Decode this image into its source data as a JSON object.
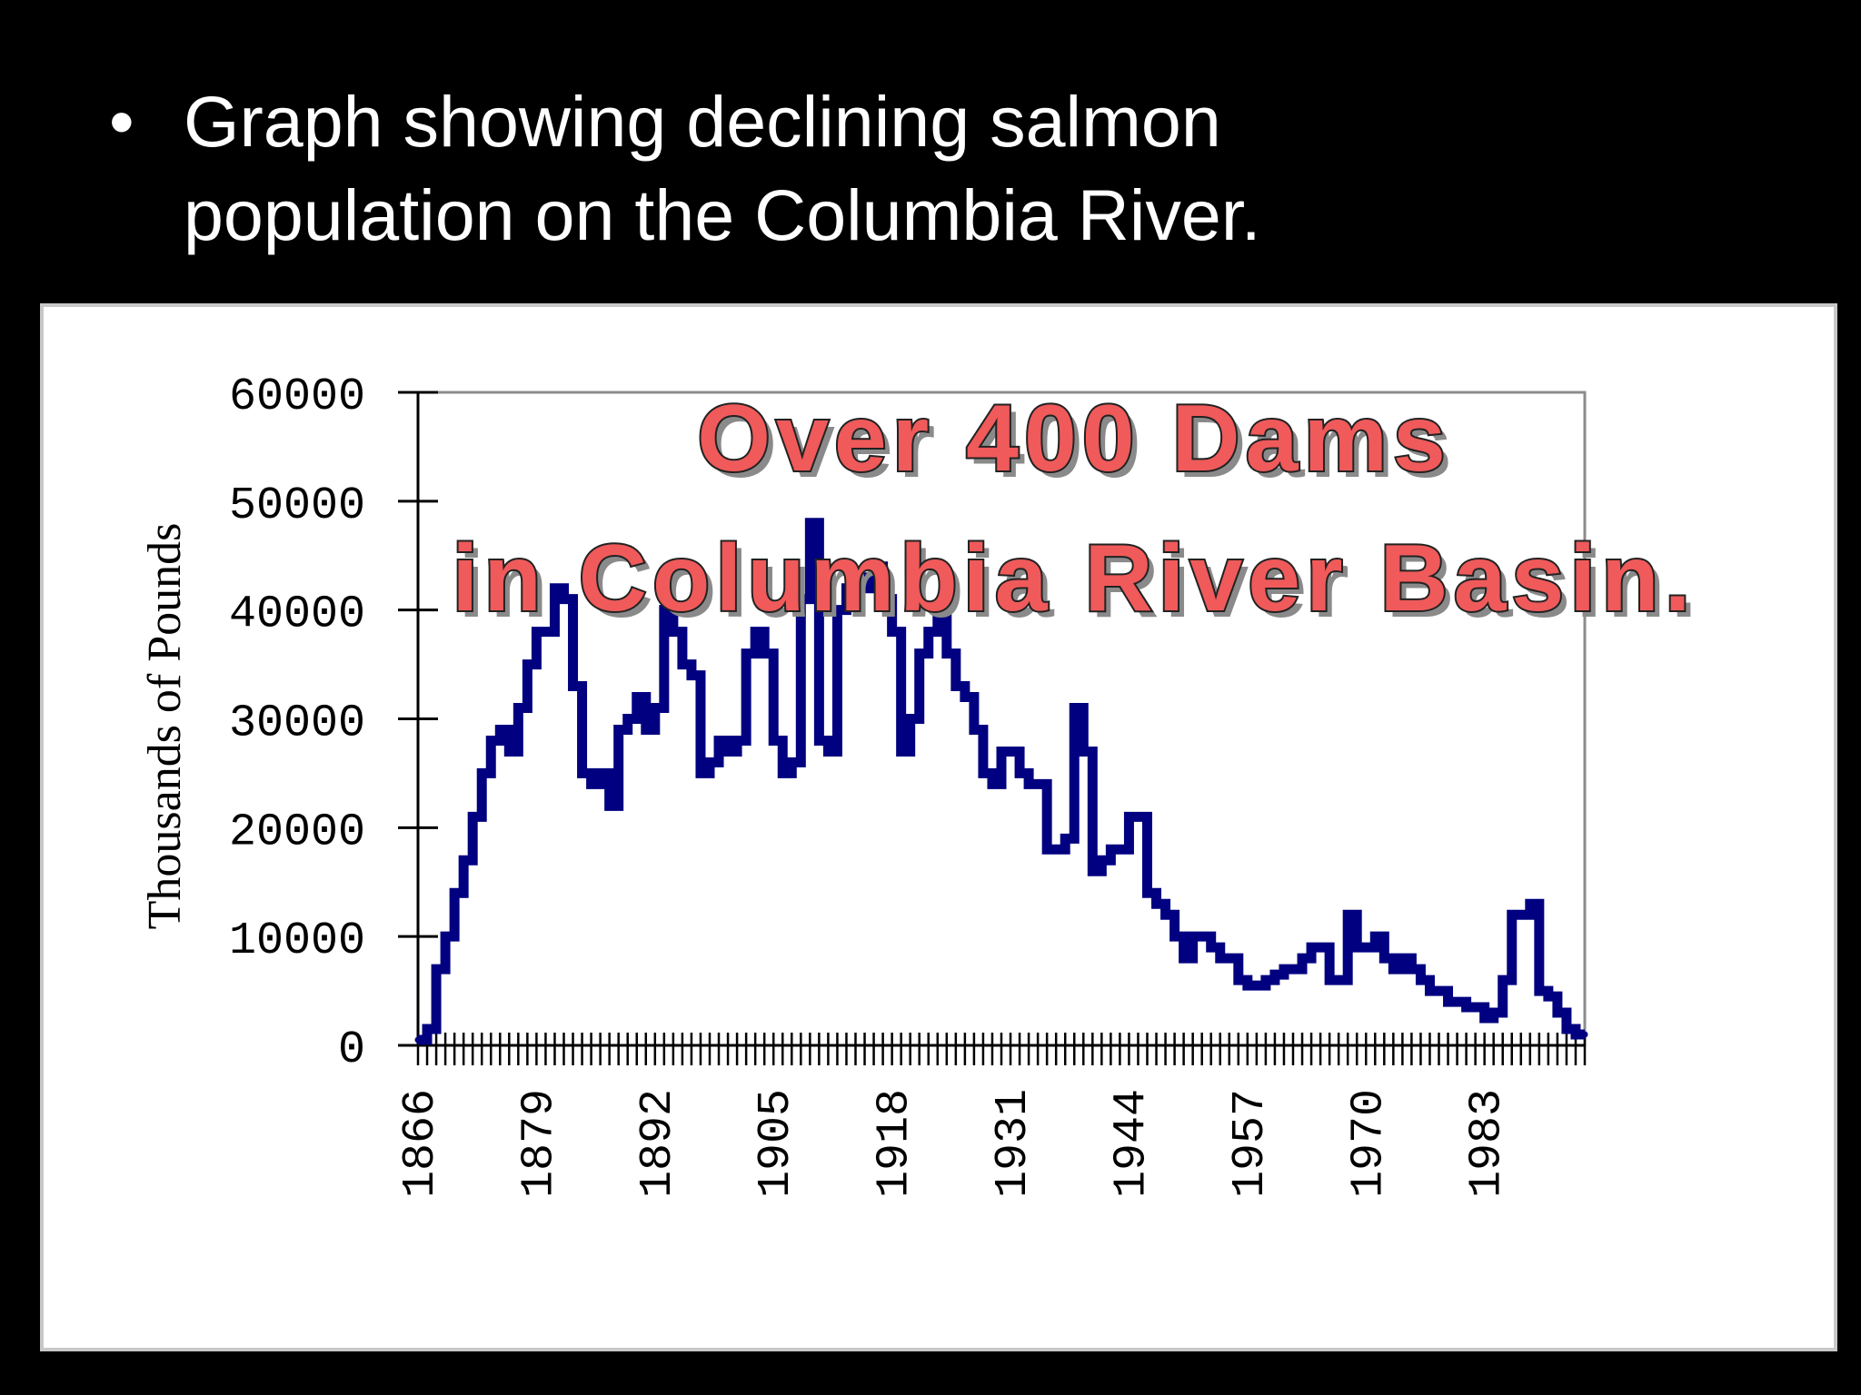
{
  "slide": {
    "bullet": "•",
    "text_line1": "Graph showing declining salmon",
    "text_line2": "population on the Columbia River."
  },
  "colors": {
    "background": "#000000",
    "text": "#ffffff",
    "series": "#000080",
    "annotation_fill": "#f05a5a",
    "annotation_stroke": "#222222",
    "annotation_shadow": "#8a8a8a"
  },
  "chart_data": {
    "type": "line",
    "title": "",
    "xlabel": "",
    "ylabel": "Thousands of Pounds",
    "ylim": [
      0,
      60000
    ],
    "xlim": [
      1866,
      1994
    ],
    "yticks": [
      "0",
      "10000",
      "20000",
      "30000",
      "40000",
      "50000",
      "60000"
    ],
    "xticks": [
      "1866",
      "1879",
      "1892",
      "1905",
      "1918",
      "1931",
      "1944",
      "1957",
      "1970",
      "1983"
    ],
    "grid": false,
    "legend": "none",
    "annotation": {
      "line1": "Over 400 Dams",
      "line2": "in Columbia River Basin."
    },
    "series": [
      {
        "name": "",
        "x": [
          1866,
          1867,
          1868,
          1869,
          1870,
          1871,
          1872,
          1873,
          1874,
          1875,
          1876,
          1877,
          1878,
          1879,
          1880,
          1881,
          1882,
          1883,
          1884,
          1885,
          1886,
          1887,
          1888,
          1889,
          1890,
          1891,
          1892,
          1893,
          1894,
          1895,
          1896,
          1897,
          1898,
          1899,
          1900,
          1901,
          1902,
          1903,
          1904,
          1905,
          1906,
          1907,
          1908,
          1909,
          1910,
          1911,
          1912,
          1913,
          1914,
          1915,
          1916,
          1917,
          1918,
          1919,
          1920,
          1921,
          1922,
          1923,
          1924,
          1925,
          1926,
          1927,
          1928,
          1929,
          1930,
          1931,
          1932,
          1933,
          1934,
          1935,
          1936,
          1937,
          1938,
          1939,
          1940,
          1941,
          1942,
          1943,
          1944,
          1945,
          1946,
          1947,
          1948,
          1949,
          1950,
          1951,
          1952,
          1953,
          1954,
          1955,
          1956,
          1957,
          1958,
          1959,
          1960,
          1961,
          1962,
          1963,
          1964,
          1965,
          1966,
          1967,
          1968,
          1969,
          1970,
          1971,
          1972,
          1973,
          1974,
          1975,
          1976,
          1977,
          1978,
          1979,
          1980,
          1981,
          1982,
          1983,
          1984,
          1985,
          1986,
          1987,
          1988,
          1989,
          1990,
          1991,
          1992,
          1993,
          1994
        ],
        "y": [
          500,
          1500,
          7000,
          10000,
          14000,
          17000,
          21000,
          25000,
          28000,
          29000,
          27000,
          31000,
          35000,
          38000,
          38000,
          42000,
          41000,
          33000,
          25000,
          24000,
          25000,
          22000,
          29000,
          30000,
          32000,
          29000,
          31000,
          40000,
          38000,
          35000,
          34000,
          25000,
          26000,
          28000,
          27000,
          28000,
          36000,
          38000,
          36000,
          28000,
          25000,
          26000,
          41000,
          48000,
          28000,
          27000,
          40000,
          42000,
          43000,
          42000,
          44000,
          41000,
          38000,
          27000,
          30000,
          36000,
          38000,
          40000,
          36000,
          33000,
          32000,
          29000,
          25000,
          24000,
          27000,
          27000,
          25000,
          24000,
          24000,
          18000,
          18000,
          19000,
          31000,
          27000,
          16000,
          17000,
          18000,
          18000,
          21000,
          21000,
          14000,
          13000,
          12000,
          10000,
          8000,
          10000,
          10000,
          9000,
          8000,
          8000,
          6000,
          5500,
          5500,
          6000,
          6500,
          7000,
          7000,
          8000,
          9000,
          9000,
          6000,
          6000,
          12000,
          9000,
          9000,
          10000,
          8000,
          7000,
          8000,
          7000,
          6000,
          5000,
          5000,
          4000,
          4000,
          3500,
          3500,
          2500,
          3000,
          6000,
          12000,
          12000,
          13000,
          5000,
          4500,
          3000,
          1500,
          1000,
          1000
        ]
      }
    ]
  }
}
